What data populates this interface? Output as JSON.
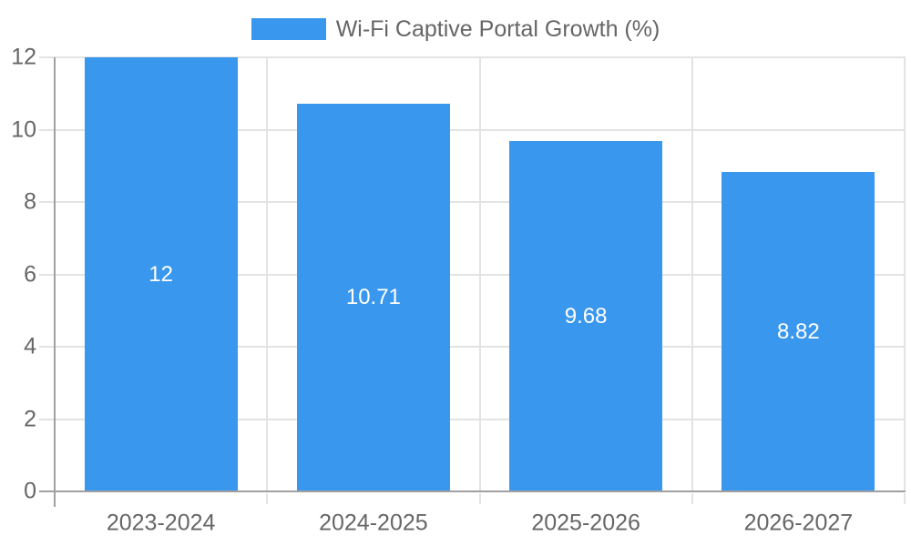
{
  "chart_data": {
    "type": "bar",
    "title": "Wi-Fi Captive Portal Growth (%)",
    "legend": [
      "Wi-Fi Captive Portal Growth (%)"
    ],
    "legend_position": "top",
    "categories": [
      "2023-2024",
      "2024-2025",
      "2025-2026",
      "2026-2027"
    ],
    "values": [
      12,
      10.71,
      9.68,
      8.82
    ],
    "value_labels": [
      "12",
      "10.71",
      "9.68",
      "8.82"
    ],
    "xlabel": "",
    "ylabel": "",
    "ylim": [
      0,
      12
    ],
    "yticks": [
      0,
      2,
      4,
      6,
      8,
      10,
      12
    ],
    "ytick_labels": [
      "0",
      "2",
      "4",
      "6",
      "8",
      "10",
      "12"
    ],
    "grid": true,
    "background": "#ffffff"
  },
  "colors": {
    "bar": "#3997ee",
    "gridline": "#e3e3e3",
    "axis": "#a0a0a0",
    "tick_text": "#666666",
    "legend_text": "#666666",
    "value_text": "#ffffff"
  }
}
